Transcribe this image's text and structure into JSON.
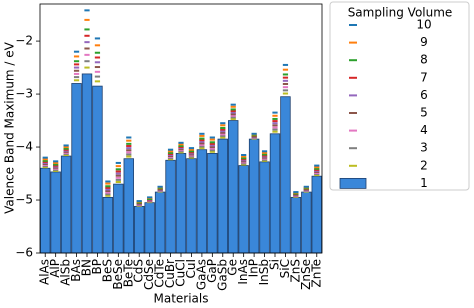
{
  "chart_data": {
    "type": "bar",
    "ylabel": "Valence Band Maximum / eV",
    "xlabel": "Materials",
    "categories": [
      "AlAs",
      "AlP",
      "AlSb",
      "BAs",
      "BN",
      "BP",
      "BeS",
      "BeSe",
      "BeTe",
      "CdS",
      "CdSe",
      "CdTe",
      "CuBr",
      "CuCl",
      "CuI",
      "GaAs",
      "GaP",
      "GaSb",
      "Ge",
      "InAs",
      "InP",
      "InSb",
      "Si",
      "SiC",
      "ZnS",
      "ZnSe",
      "ZnTe"
    ],
    "ylim": [
      -6,
      -1.3
    ],
    "yticks": [
      {
        "value": -6,
        "label": "−6"
      },
      {
        "value": -5,
        "label": "−5"
      },
      {
        "value": -4,
        "label": "−4"
      },
      {
        "value": -3,
        "label": "−3"
      },
      {
        "value": -2,
        "label": "−2"
      }
    ],
    "legend_title": "Sampling Volume",
    "legend": "outside right",
    "series": [
      {
        "name": "1",
        "marker": "bar",
        "color": "#3a87d9",
        "values": [
          -4.4,
          -4.47,
          -4.17,
          -2.8,
          -2.62,
          -2.85,
          -4.95,
          -4.7,
          -4.22,
          -5.12,
          -5.05,
          -4.85,
          -4.25,
          -4.12,
          -4.22,
          -4.05,
          -4.12,
          -3.85,
          -3.5,
          -4.35,
          -3.85,
          -4.28,
          -3.75,
          -3.05,
          -4.95,
          -4.85,
          -4.55
        ]
      },
      {
        "name": "2",
        "marker": "dash",
        "color": "#bcbd22",
        "values": [
          -4.38,
          -4.45,
          -4.15,
          -2.74,
          -2.5,
          -2.76,
          -4.92,
          -4.66,
          -4.18,
          -5.11,
          -5.04,
          -4.84,
          -4.23,
          -4.1,
          -4.2,
          -4.02,
          -4.09,
          -3.82,
          -3.47,
          -4.33,
          -3.84,
          -4.26,
          -3.71,
          -2.99,
          -4.94,
          -4.84,
          -4.53
        ]
      },
      {
        "name": "3",
        "marker": "dash",
        "color": "#7f7f7f",
        "values": [
          -4.36,
          -4.43,
          -4.13,
          -2.68,
          -2.38,
          -2.67,
          -4.89,
          -4.62,
          -4.14,
          -5.1,
          -5.03,
          -4.83,
          -4.21,
          -4.08,
          -4.18,
          -3.99,
          -4.06,
          -3.79,
          -3.44,
          -4.31,
          -3.83,
          -4.24,
          -3.67,
          -2.93,
          -4.93,
          -4.83,
          -4.51
        ]
      },
      {
        "name": "4",
        "marker": "dash",
        "color": "#e377c2",
        "values": [
          -4.34,
          -4.41,
          -4.11,
          -2.62,
          -2.26,
          -2.58,
          -4.86,
          -4.58,
          -4.1,
          -5.09,
          -5.02,
          -4.82,
          -4.19,
          -4.06,
          -4.16,
          -3.96,
          -4.03,
          -3.76,
          -3.41,
          -4.29,
          -3.82,
          -4.22,
          -3.63,
          -2.87,
          -4.92,
          -4.82,
          -4.49
        ]
      },
      {
        "name": "5",
        "marker": "dash",
        "color": "#8c564b",
        "values": [
          -4.32,
          -4.39,
          -4.09,
          -2.56,
          -2.14,
          -2.49,
          -4.83,
          -4.54,
          -4.06,
          -5.08,
          -5.01,
          -4.81,
          -4.17,
          -4.04,
          -4.14,
          -3.93,
          -4.0,
          -3.73,
          -3.38,
          -4.27,
          -3.81,
          -4.2,
          -3.59,
          -2.81,
          -4.91,
          -4.81,
          -4.47
        ]
      },
      {
        "name": "6",
        "marker": "dash",
        "color": "#9467bd",
        "values": [
          -4.3,
          -4.37,
          -4.07,
          -2.5,
          -2.02,
          -2.4,
          -4.8,
          -4.5,
          -4.02,
          -5.07,
          -5.0,
          -4.8,
          -4.15,
          -4.02,
          -4.12,
          -3.9,
          -3.97,
          -3.7,
          -3.35,
          -4.25,
          -3.8,
          -4.18,
          -3.55,
          -2.75,
          -4.9,
          -4.8,
          -4.45
        ]
      },
      {
        "name": "7",
        "marker": "dash",
        "color": "#d62728",
        "values": [
          -4.28,
          -4.35,
          -4.05,
          -2.44,
          -1.9,
          -2.31,
          -4.77,
          -4.46,
          -3.98,
          -5.06,
          -4.99,
          -4.79,
          -4.13,
          -4.0,
          -4.1,
          -3.87,
          -3.94,
          -3.67,
          -3.32,
          -4.23,
          -3.79,
          -4.16,
          -3.51,
          -2.69,
          -4.89,
          -4.79,
          -4.43
        ]
      },
      {
        "name": "8",
        "marker": "dash",
        "color": "#2ca02c",
        "values": [
          -4.26,
          -4.33,
          -4.03,
          -2.38,
          -1.78,
          -2.22,
          -4.74,
          -4.42,
          -3.94,
          -5.05,
          -4.98,
          -4.78,
          -4.11,
          -3.98,
          -4.08,
          -3.84,
          -3.91,
          -3.64,
          -3.29,
          -4.21,
          -3.78,
          -4.14,
          -3.47,
          -2.63,
          -4.88,
          -4.78,
          -4.41
        ]
      },
      {
        "name": "9",
        "marker": "dash",
        "color": "#ff7f0e",
        "values": [
          -4.23,
          -4.3,
          -4.0,
          -2.29,
          -1.6,
          -2.08,
          -4.69,
          -4.36,
          -3.88,
          -5.03,
          -4.96,
          -4.76,
          -4.08,
          -3.95,
          -4.05,
          -3.79,
          -3.86,
          -3.59,
          -3.24,
          -4.18,
          -3.76,
          -4.11,
          -3.41,
          -2.54,
          -4.86,
          -4.76,
          -4.38
        ]
      },
      {
        "name": "10",
        "marker": "dash",
        "color": "#1f77b4",
        "values": [
          -4.2,
          -4.27,
          -3.97,
          -2.2,
          -1.42,
          -1.95,
          -4.65,
          -4.3,
          -3.82,
          -5.02,
          -4.95,
          -4.75,
          -4.05,
          -3.92,
          -4.02,
          -3.75,
          -3.82,
          -3.55,
          -3.2,
          -4.15,
          -3.75,
          -4.08,
          -3.35,
          -2.45,
          -4.85,
          -4.75,
          -4.35
        ]
      }
    ]
  }
}
